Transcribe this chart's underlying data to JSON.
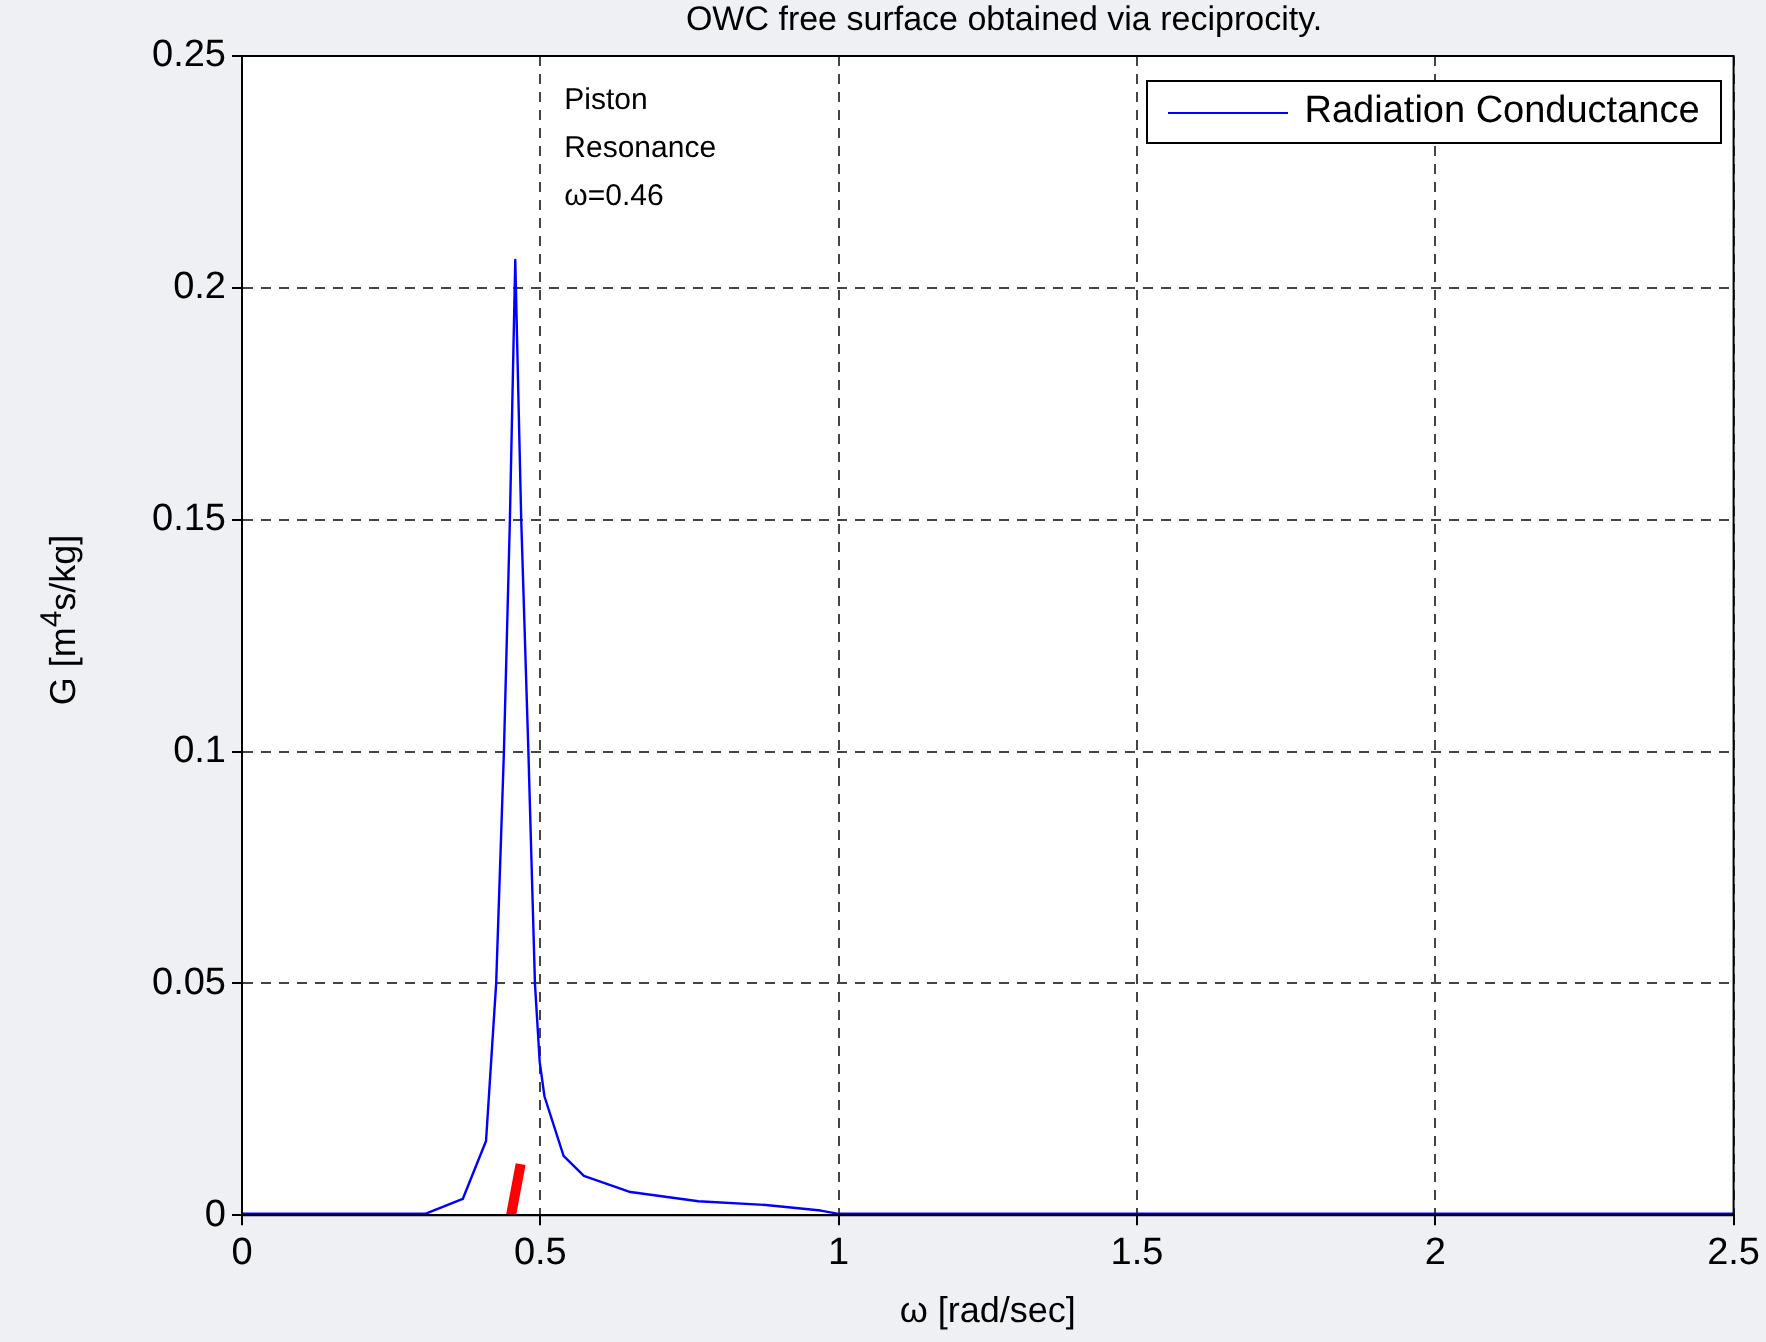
{
  "chart_data": {
    "type": "line",
    "title": "OWC free surface obtained via reciprocity.",
    "xlabel": "ω [rad/sec]",
    "ylabel": "G [m$^{4}$s/kg]",
    "xlim": [
      0,
      2.5
    ],
    "xticks": [
      0,
      0.5,
      1,
      1.5,
      2,
      2.5
    ],
    "ylim": [
      0,
      0.25
    ],
    "yticks": [
      0,
      0.05,
      0.1,
      0.15,
      0.2,
      0.25
    ],
    "grid": true,
    "legend": "top right",
    "line_style": "solid",
    "marker": "none",
    "annotations": [
      "Piston\nResonance\nω=0.46"
    ],
    "series": [
      {
        "name": "Radiation Conductance",
        "color": "#0000ff",
        "x": [
          0,
          0.307,
          0.37,
          0.409,
          0.426,
          0.439,
          0.449,
          0.458,
          0.468,
          0.48,
          0.491,
          0.499,
          0.507,
          0.539,
          0.573,
          0.651,
          0.765,
          0.878,
          0.97,
          1.0,
          2.5
        ],
        "values": [
          0.0003,
          0.0003,
          0.0035,
          0.016,
          0.05,
          0.1,
          0.15,
          0.206,
          0.15,
          0.1,
          0.05,
          0.033,
          0.0256,
          0.0128,
          0.0085,
          0.005,
          0.003,
          0.0022,
          0.001,
          0.0003,
          0.0003
        ]
      },
      {
        "color": "#ff0000",
        "x": [
          0.451,
          0.467
        ],
        "values": [
          0,
          0.011
        ]
      }
    ]
  }
}
